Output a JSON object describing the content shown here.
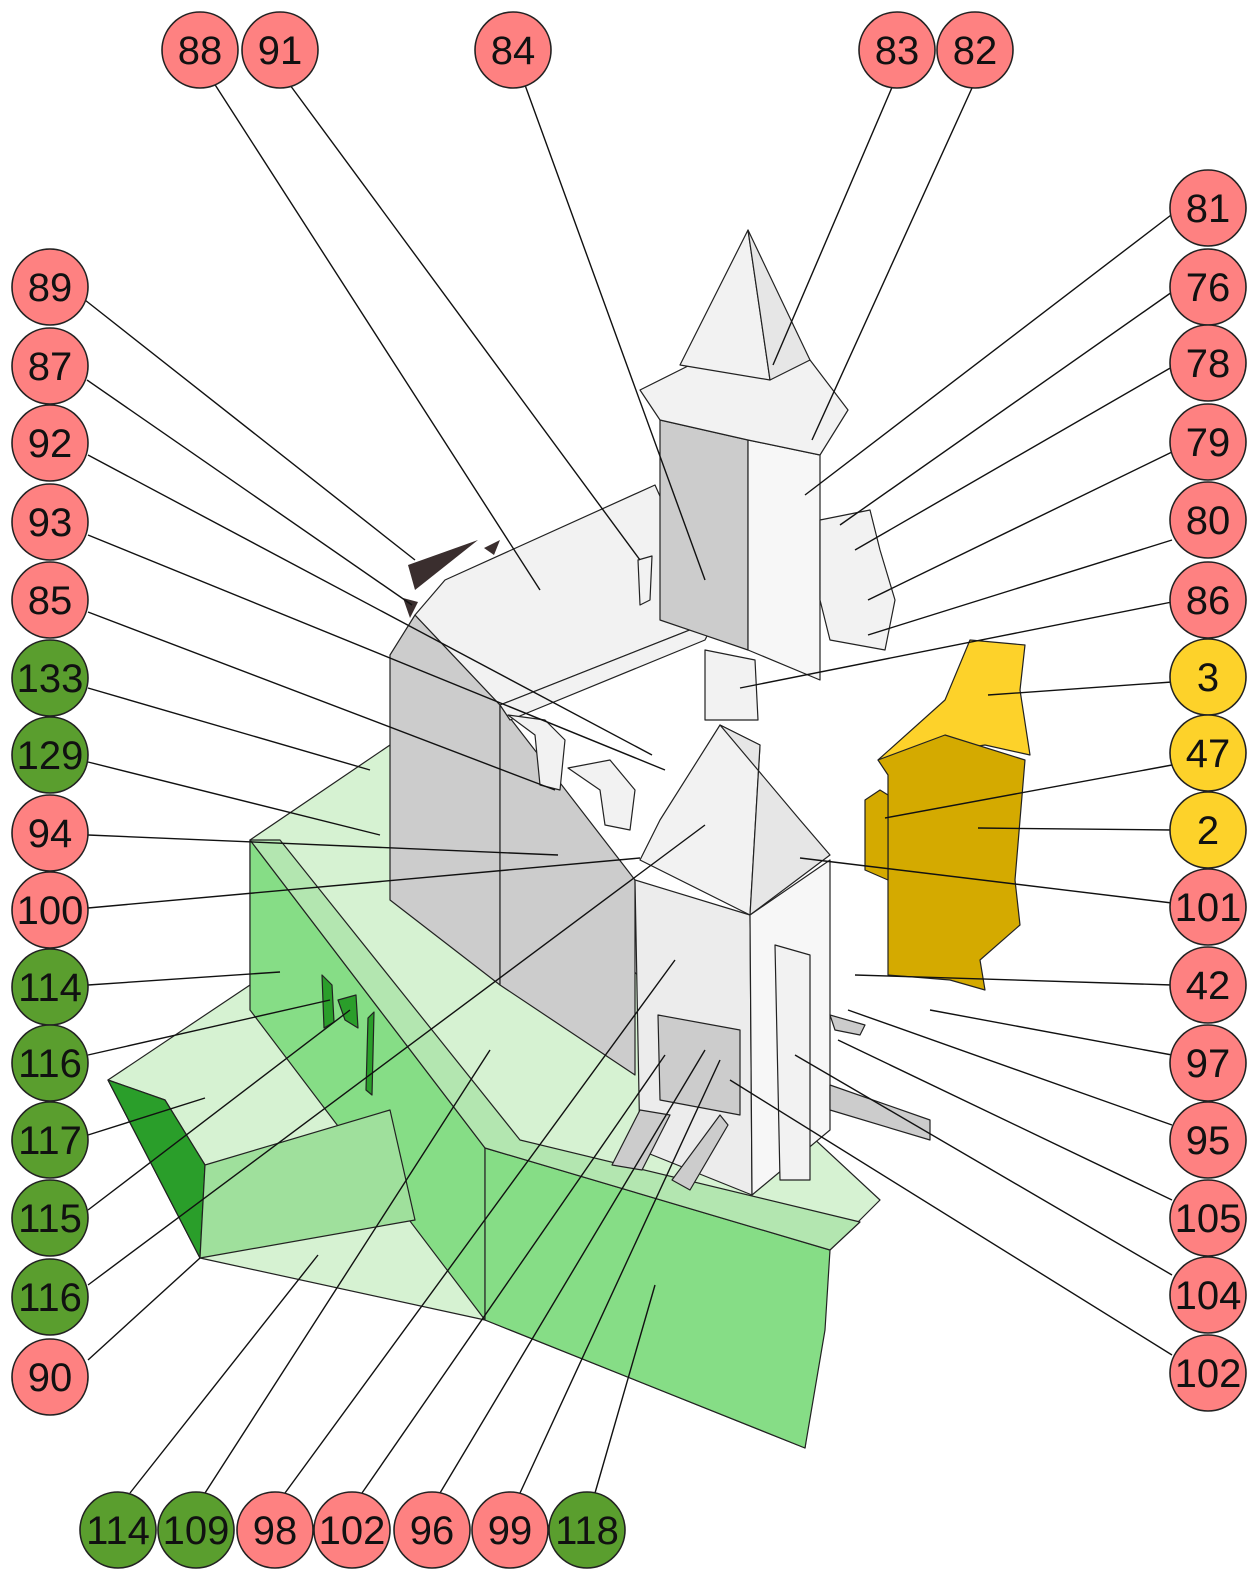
{
  "colors": {
    "red": "#fe8181",
    "green": "#5a9e2e",
    "yellow": "#fdd22a",
    "light-grey": "#f2f2f2",
    "mid-grey": "#cccccc",
    "light-green": "#d6f2d2",
    "mid-green": "#86dd86",
    "dark-green": "#2a9e2a",
    "gold": "#d4aa00"
  },
  "callouts": [
    {
      "id": "c88-top",
      "label": "88",
      "color": "red"
    },
    {
      "id": "c91-top",
      "label": "91",
      "color": "red"
    },
    {
      "id": "c84-top",
      "label": "84",
      "color": "red"
    },
    {
      "id": "c83-top",
      "label": "83",
      "color": "red"
    },
    {
      "id": "c82-top",
      "label": "82",
      "color": "red"
    },
    {
      "id": "c81-right",
      "label": "81",
      "color": "red"
    },
    {
      "id": "c76-right",
      "label": "76",
      "color": "red"
    },
    {
      "id": "c78-right",
      "label": "78",
      "color": "red"
    },
    {
      "id": "c79-right",
      "label": "79",
      "color": "red"
    },
    {
      "id": "c80-right",
      "label": "80",
      "color": "red"
    },
    {
      "id": "c86-right",
      "label": "86",
      "color": "red"
    },
    {
      "id": "c3-right",
      "label": "3",
      "color": "yellow"
    },
    {
      "id": "c47-right",
      "label": "47",
      "color": "yellow"
    },
    {
      "id": "c2-right",
      "label": "2",
      "color": "yellow"
    },
    {
      "id": "c101-right",
      "label": "101",
      "color": "red"
    },
    {
      "id": "c42-right",
      "label": "42",
      "color": "red"
    },
    {
      "id": "c97-right",
      "label": "97",
      "color": "red"
    },
    {
      "id": "c95-right",
      "label": "95",
      "color": "red"
    },
    {
      "id": "c105-right",
      "label": "105",
      "color": "red"
    },
    {
      "id": "c104-right",
      "label": "104",
      "color": "red"
    },
    {
      "id": "c102-right",
      "label": "102",
      "color": "red"
    },
    {
      "id": "c89-left",
      "label": "89",
      "color": "red"
    },
    {
      "id": "c87-left",
      "label": "87",
      "color": "red"
    },
    {
      "id": "c92-left",
      "label": "92",
      "color": "red"
    },
    {
      "id": "c93-left",
      "label": "93",
      "color": "red"
    },
    {
      "id": "c85-left",
      "label": "85",
      "color": "red"
    },
    {
      "id": "c133-left",
      "label": "133",
      "color": "green"
    },
    {
      "id": "c129-left",
      "label": "129",
      "color": "green"
    },
    {
      "id": "c94-left",
      "label": "94",
      "color": "red"
    },
    {
      "id": "c100-left",
      "label": "100",
      "color": "red"
    },
    {
      "id": "c114-left",
      "label": "114",
      "color": "green"
    },
    {
      "id": "c116a-left",
      "label": "116",
      "color": "green"
    },
    {
      "id": "c117-left",
      "label": "117",
      "color": "green"
    },
    {
      "id": "c115-left",
      "label": "115",
      "color": "green"
    },
    {
      "id": "c116b-left",
      "label": "116",
      "color": "green"
    },
    {
      "id": "c90-left",
      "label": "90",
      "color": "red"
    },
    {
      "id": "c114-bottom",
      "label": "114",
      "color": "green"
    },
    {
      "id": "c109-bottom",
      "label": "109",
      "color": "green"
    },
    {
      "id": "c98-bottom",
      "label": "98",
      "color": "red"
    },
    {
      "id": "c102-bottom",
      "label": "102",
      "color": "red"
    },
    {
      "id": "c96-bottom",
      "label": "96",
      "color": "red"
    },
    {
      "id": "c99-bottom",
      "label": "99",
      "color": "red"
    },
    {
      "id": "c118-bottom",
      "label": "118",
      "color": "green"
    }
  ]
}
